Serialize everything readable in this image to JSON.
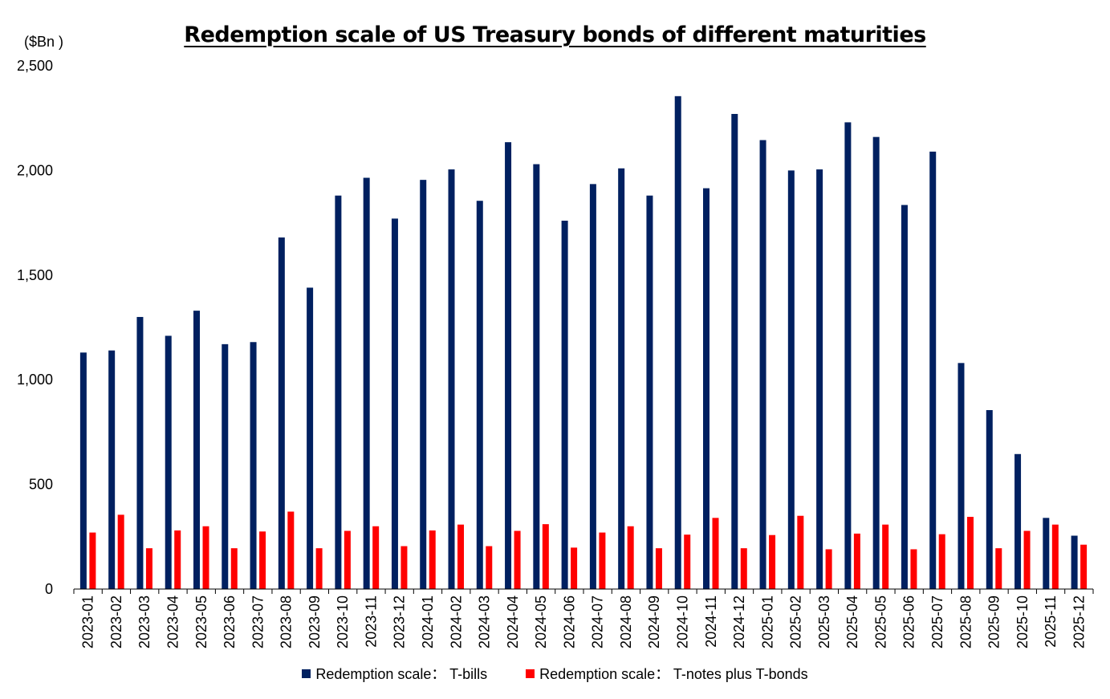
{
  "chart_data": {
    "type": "bar",
    "title": "Redemption scale of US Treasury bonds of different maturities",
    "unit_label": "($Bn )",
    "ylim": [
      0,
      2500
    ],
    "yticks": [
      "0",
      "500",
      "1,000",
      "1,500",
      "2,000",
      "2,500"
    ],
    "ytick_values": [
      0,
      500,
      1000,
      1500,
      2000,
      2500
    ],
    "grid": false,
    "legend_position": "bottom",
    "categories": [
      "2023-01",
      "2023-02",
      "2023-03",
      "2023-04",
      "2023-05",
      "2023-06",
      "2023-07",
      "2023-08",
      "2023-09",
      "2023-10",
      "2023-11",
      "2023-12",
      "2024-01",
      "2024-02",
      "2024-03",
      "2024-04",
      "2024-05",
      "2024-06",
      "2024-07",
      "2024-08",
      "2024-09",
      "2024-10",
      "2024-11",
      "2024-12",
      "2025-01",
      "2025-02",
      "2025-03",
      "2025-04",
      "2025-05",
      "2025-06",
      "2025-07",
      "2025-08",
      "2025-09",
      "2025-10",
      "2025-11",
      "2025-12"
    ],
    "series": [
      {
        "name": "Redemption scale： T-bills",
        "color": "#002060",
        "values": [
          1130,
          1140,
          1300,
          1210,
          1330,
          1170,
          1180,
          1680,
          1440,
          1880,
          1965,
          1770,
          1955,
          2005,
          1855,
          2135,
          2030,
          1760,
          1935,
          2010,
          1880,
          2355,
          1915,
          2270,
          2145,
          2000,
          2005,
          2230,
          2160,
          1835,
          2090,
          1080,
          855,
          645,
          340,
          255
        ]
      },
      {
        "name": "Redemption scale： T-notes plus T-bonds",
        "color": "#FF0000",
        "values": [
          270,
          355,
          195,
          280,
          300,
          195,
          275,
          370,
          195,
          278,
          300,
          205,
          280,
          308,
          205,
          278,
          310,
          198,
          270,
          300,
          195,
          260,
          340,
          195,
          258,
          350,
          190,
          265,
          308,
          190,
          262,
          345,
          195,
          278,
          308,
          212
        ]
      }
    ]
  }
}
